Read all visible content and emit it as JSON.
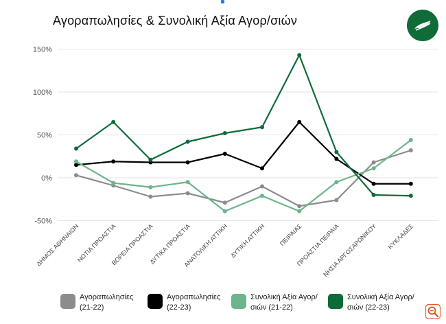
{
  "chart_data": {
    "type": "line",
    "title": "Αγοραπωλησίες & Συνολική Αξία Αγορ/σιών",
    "categories": [
      "ΔΗΜΟΣ ΑΘΗΝΑΙΩΝ",
      "ΝΟΤΙΑ ΠΡΟΑΣΤΙΑ",
      "ΒΟΡΕΙΑ ΠΡΟΑΣΤΙΑ",
      "ΔΥΤΙΚΑ ΠΡΟΑΣΤΙΑ",
      "ΑΝΑΤΟΛΙΚΗ ΑΤΤΙΚΗ",
      "ΔΥΤΙΚΗ ΑΤΤΙΚΗ",
      "ΠΕΙΡΑΙΑΣ",
      "ΠΡΟΑΣΤΙΑ ΠΕΙΡΑΙΑ",
      "ΝΗΣΙΑ ΑΡΓΟΣΑΡΩΝΙΚΟΥ",
      "ΚΥΚΛΑΔΕΣ"
    ],
    "ylim": [
      -50,
      150
    ],
    "yticks": [
      -50,
      0,
      50,
      100,
      150
    ],
    "ytick_labels": [
      "-50%",
      "0%",
      "50%",
      "100%",
      "150%"
    ],
    "grid": true,
    "legend_position": "bottom",
    "series": [
      {
        "name": "Αγοραπωλησίες (21-22)",
        "color": "#8c8c8c",
        "values": [
          3,
          -9,
          -22,
          -18,
          -29,
          -10,
          -33,
          -26,
          18,
          32
        ]
      },
      {
        "name": "Αγοραπωλησίες (22-23)",
        "color": "#000000",
        "values": [
          15,
          19,
          18,
          18,
          28,
          11,
          65,
          22,
          -7,
          -7
        ]
      },
      {
        "name": "Συνολική Αξία Αγορ/σιών (21-22)",
        "color": "#6db58a",
        "values": [
          19,
          -6,
          -11,
          -5,
          -39,
          -21,
          -39,
          -5,
          11,
          44
        ]
      },
      {
        "name": "Συνολική Αξία Αγορ/σιών (22-23)",
        "color": "#0e6b38",
        "values": [
          34,
          65,
          21,
          42,
          52,
          59,
          143,
          30,
          -20,
          -21
        ]
      }
    ]
  },
  "logo": {
    "name": "site-logo-leaf",
    "bg_color": "#0f6b37"
  },
  "badge": {
    "name": "zoom-badge-icon",
    "color": "#e05a2b"
  }
}
